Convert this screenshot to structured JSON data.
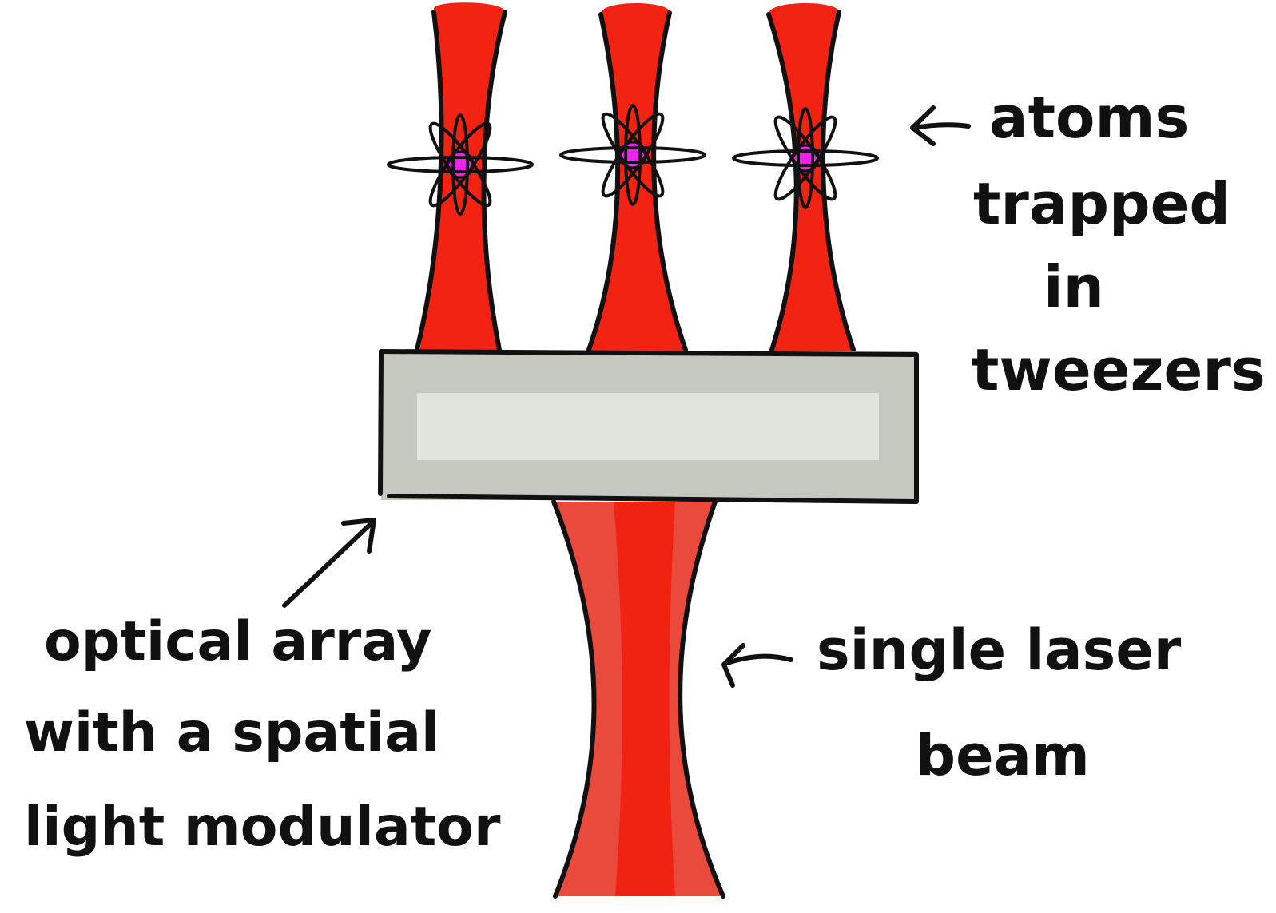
{
  "labels": {
    "atoms": [
      "atoms",
      "trapped",
      "in",
      "tweezers"
    ],
    "optical": [
      "optical array",
      "with a spatial",
      "light modulator"
    ],
    "laser": [
      "single laser",
      "beam"
    ]
  },
  "colors": {
    "beam_red": "#f22312",
    "lower_beam_red": "#ea4a3c",
    "lower_beam_core": "#f02212",
    "atom_magenta": "#ee22ee",
    "slm_outer": "#c4c8bf",
    "slm_inner": "#dfe4dc",
    "ink": "#111111"
  },
  "icons": [
    "atom-icon",
    "arrow-icon"
  ]
}
